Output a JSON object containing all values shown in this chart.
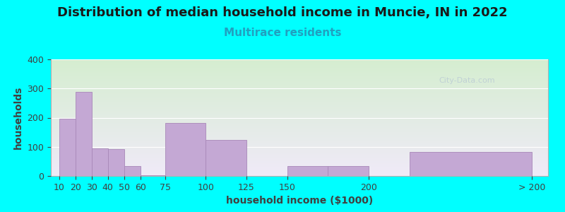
{
  "title": "Distribution of median household income in Muncie, IN in 2022",
  "subtitle": "Multirace residents",
  "xlabel": "household income ($1000)",
  "ylabel": "households",
  "bg_outer": "#00FFFF",
  "grad_top": "#d5eed0",
  "grad_bottom": "#f0eaf8",
  "bar_color": "#c4a8d4",
  "bar_edge_color": "#a888b8",
  "bar_lefts": [
    10,
    20,
    30,
    40,
    50,
    60,
    75,
    100,
    125,
    150,
    175,
    225
  ],
  "bar_widths": [
    10,
    10,
    10,
    10,
    10,
    15,
    25,
    25,
    25,
    25,
    25,
    75
  ],
  "bar_heights": [
    197,
    288,
    95,
    93,
    33,
    3,
    183,
    123,
    0,
    33,
    33,
    83
  ],
  "tick_positions": [
    10,
    20,
    30,
    40,
    50,
    60,
    75,
    100,
    125,
    150,
    200,
    300
  ],
  "tick_labels": [
    "10",
    "20",
    "30",
    "40",
    "50",
    "60",
    "75",
    "100",
    "125",
    "150",
    "200",
    "> 200"
  ],
  "xlim": [
    5,
    310
  ],
  "ylim": [
    0,
    400
  ],
  "yticks": [
    0,
    100,
    200,
    300,
    400
  ],
  "watermark": "City-Data.com",
  "title_fontsize": 13,
  "subtitle_fontsize": 11,
  "subtitle_color": "#20a0c0",
  "axis_label_fontsize": 10,
  "tick_fontsize": 9
}
